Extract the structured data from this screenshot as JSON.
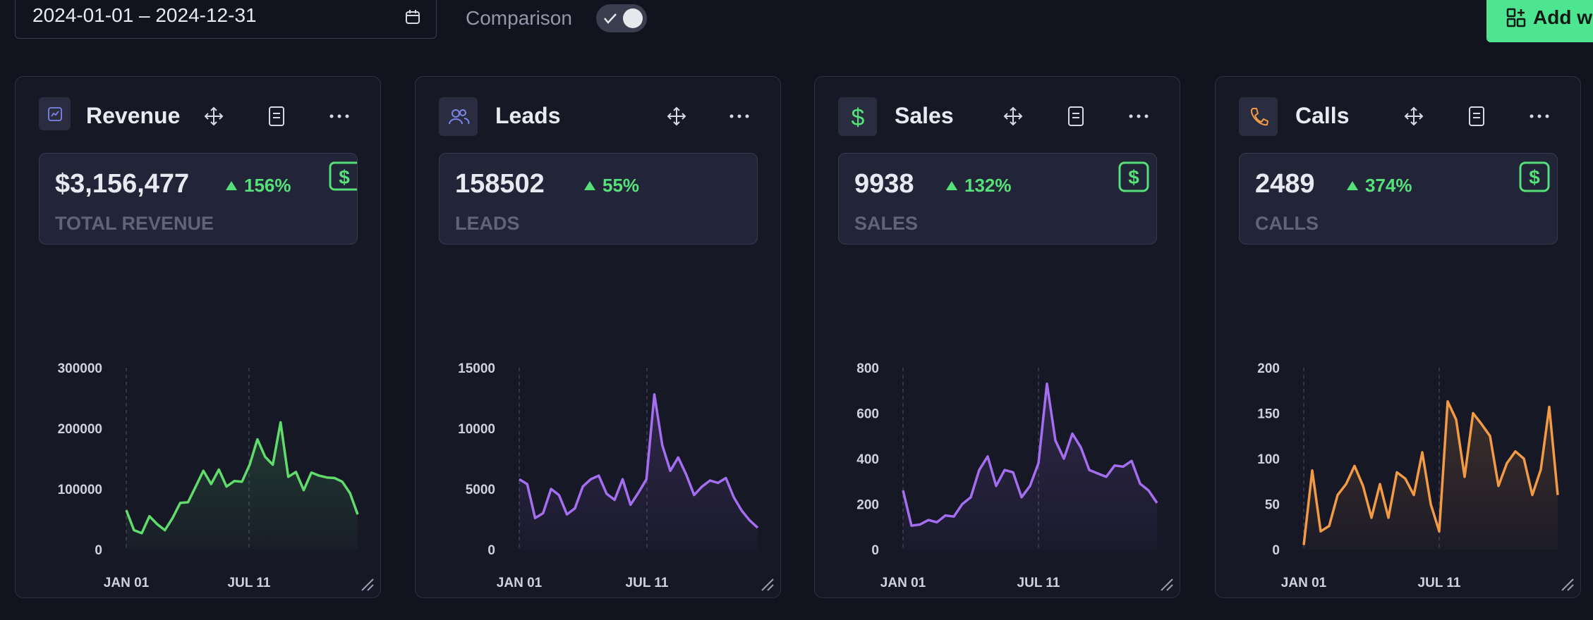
{
  "toolbar": {
    "date_range": "2024-01-01 – 2024-12-31",
    "comparison_label": "Comparison",
    "comparison_on": true,
    "add_widget_label": "Add wi"
  },
  "colors": {
    "revenue": "#5fdc6b",
    "leads": "#a56ef0",
    "sales": "#a56ef0",
    "calls": "#f29a45",
    "positive": "#56e07a"
  },
  "cards": [
    {
      "title": "Revenue",
      "value": "$3,156,477",
      "change": "156%",
      "label": "TOTAL REVENUE",
      "icon": "chart-icon",
      "chart_data": {
        "type": "area",
        "series_color": "#5fdc6b",
        "y_ticks": [
          "300000",
          "200000",
          "100000",
          "0"
        ],
        "x_ticks": [
          "JAN 01",
          "JUL 11"
        ],
        "ylim": [
          0,
          300000
        ],
        "values": [
          65000,
          32000,
          27000,
          55000,
          42000,
          32000,
          52000,
          77000,
          78000,
          104000,
          130000,
          108000,
          132000,
          104000,
          113000,
          112000,
          140000,
          182000,
          153000,
          140000,
          210000,
          120000,
          128000,
          98000,
          127000,
          122000,
          119000,
          118000,
          112000,
          93000,
          58000
        ]
      }
    },
    {
      "title": "Leads",
      "value": "158502",
      "change": "55%",
      "label": "LEADS",
      "icon": "users-icon",
      "chart_data": {
        "type": "area",
        "series_color": "#a56ef0",
        "y_ticks": [
          "15000",
          "10000",
          "5000",
          "0"
        ],
        "x_ticks": [
          "JAN 01",
          "JUL 11"
        ],
        "ylim": [
          0,
          15000
        ],
        "values": [
          5800,
          5400,
          2600,
          3000,
          5000,
          4500,
          2900,
          3400,
          5200,
          5800,
          6100,
          4600,
          4100,
          5800,
          3700,
          4700,
          5800,
          12800,
          8600,
          6500,
          7600,
          6200,
          4500,
          5200,
          5700,
          5500,
          5900,
          4300,
          3200,
          2400,
          1800
        ]
      }
    },
    {
      "title": "Sales",
      "value": "9938",
      "change": "132%",
      "label": "SALES",
      "icon": "dollar-icon",
      "chart_data": {
        "type": "area",
        "series_color": "#a56ef0",
        "y_ticks": [
          "800",
          "600",
          "400",
          "200",
          "0"
        ],
        "x_ticks": [
          "JAN 01",
          "JUL 11"
        ],
        "ylim": [
          0,
          800
        ],
        "values": [
          260,
          105,
          110,
          130,
          120,
          150,
          145,
          200,
          230,
          350,
          410,
          280,
          350,
          340,
          230,
          280,
          380,
          730,
          480,
          400,
          510,
          450,
          350,
          335,
          320,
          370,
          365,
          390,
          290,
          260,
          205
        ]
      }
    },
    {
      "title": "Calls",
      "value": "2489",
      "change": "374%",
      "label": "CALLS",
      "icon": "phone-icon",
      "chart_data": {
        "type": "area",
        "series_color": "#f29a45",
        "y_ticks": [
          "200",
          "150",
          "100",
          "50",
          "0"
        ],
        "x_ticks": [
          "JAN 01",
          "JUL 11"
        ],
        "ylim": [
          0,
          200
        ],
        "values": [
          5,
          87,
          20,
          26,
          60,
          72,
          92,
          70,
          35,
          72,
          35,
          85,
          78,
          60,
          107,
          50,
          20,
          163,
          143,
          80,
          150,
          138,
          125,
          70,
          95,
          108,
          100,
          60,
          88,
          157,
          60
        ]
      }
    }
  ]
}
